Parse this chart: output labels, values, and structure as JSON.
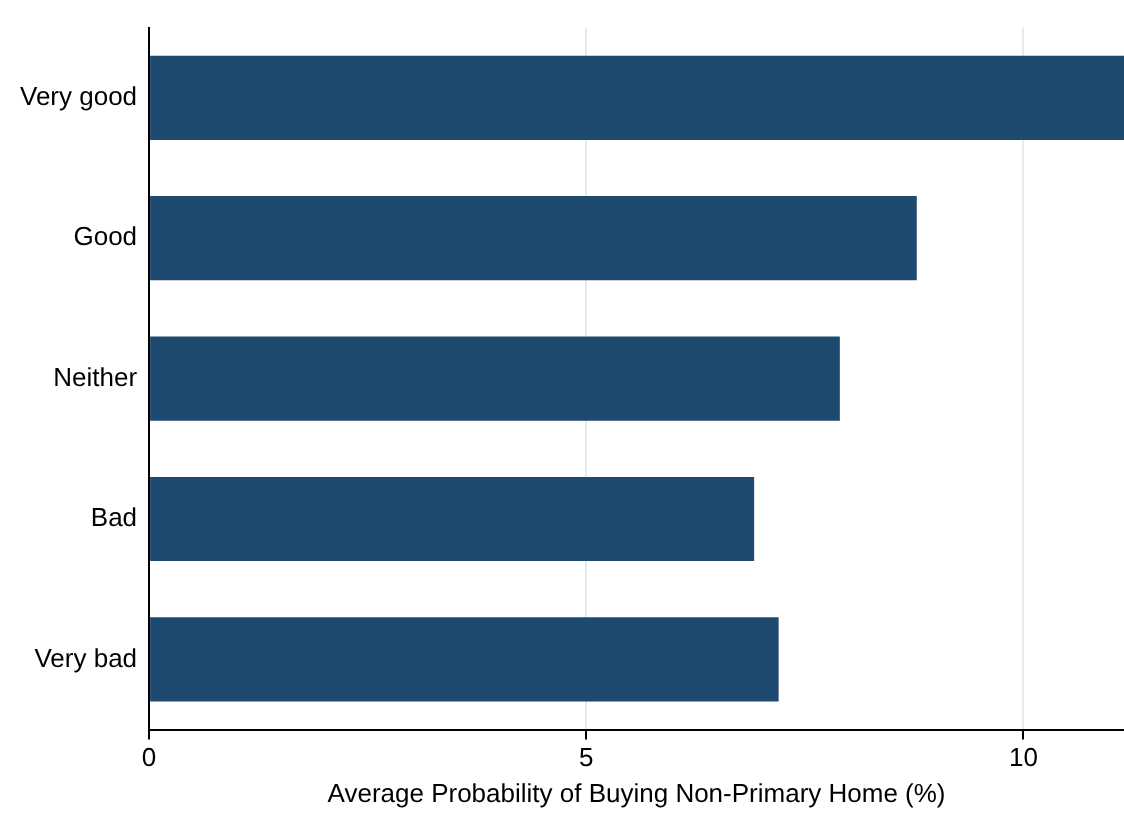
{
  "chart_data": {
    "type": "bar",
    "orientation": "horizontal",
    "categories": [
      "Very good",
      "Good",
      "Neither",
      "Bad",
      "Very bad"
    ],
    "values": [
      11.15,
      8.78,
      7.9,
      6.92,
      7.2
    ],
    "color": "#1f4a70",
    "xlabel": "Average Probability of Buying Non-Primary Home (%)",
    "xlim": [
      0,
      11.15
    ],
    "xticks": [
      0,
      5,
      10
    ],
    "grid": "x",
    "legend": false
  }
}
